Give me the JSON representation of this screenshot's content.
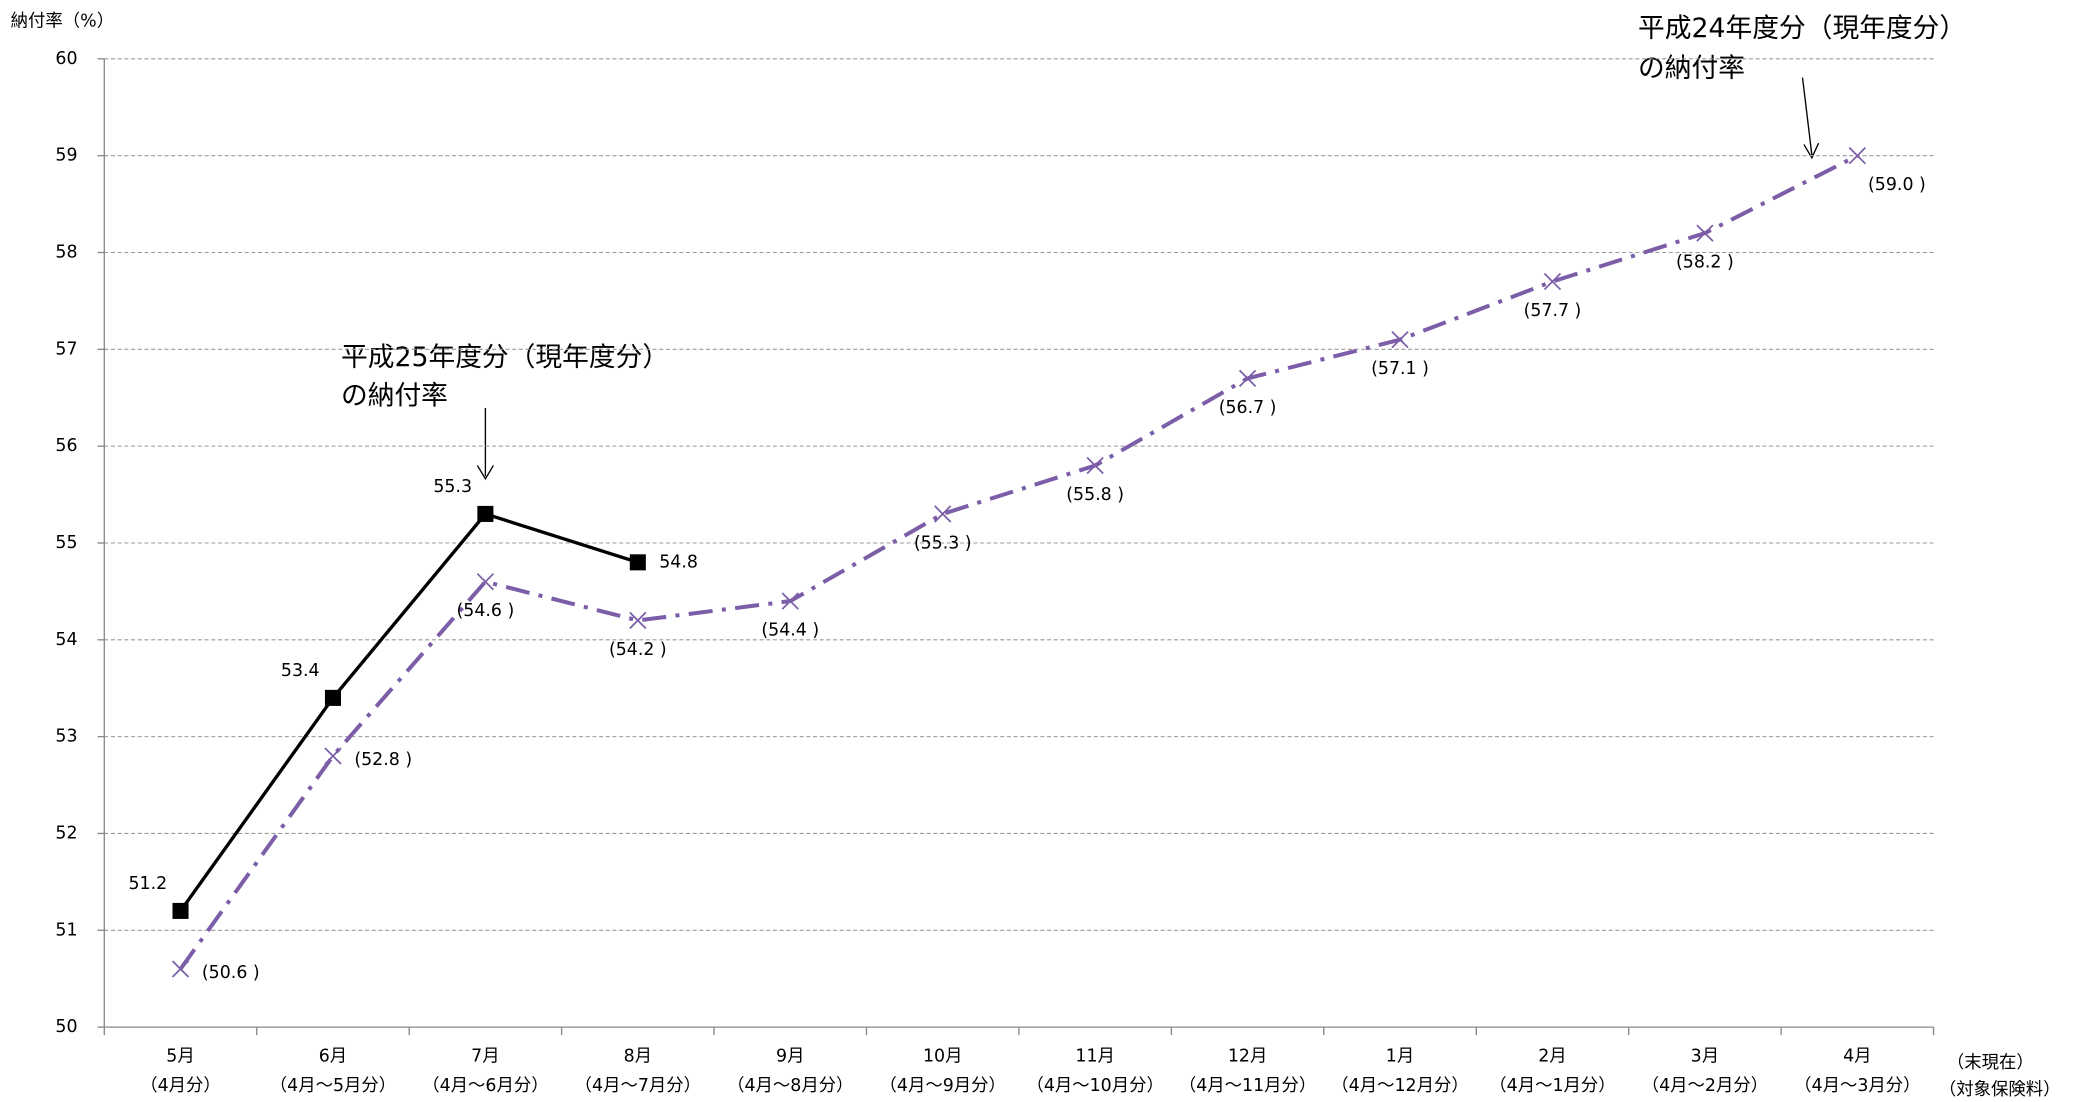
{
  "chart_data": {
    "type": "line",
    "ylabel": "納付率（%）",
    "xlabel": [
      "（末現在）",
      "（対象保険料）"
    ],
    "categories": [
      [
        "5月",
        "（4月分）"
      ],
      [
        "6月",
        "（4月～5月分）"
      ],
      [
        "7月",
        "（4月～6月分）"
      ],
      [
        "8月",
        "（4月～7月分）"
      ],
      [
        "9月",
        "（4月～8月分）"
      ],
      [
        "10月",
        "（4月～9月分）"
      ],
      [
        "11月",
        "（4月～10月分）"
      ],
      [
        "12月",
        "（4月～11月分）"
      ],
      [
        "1月",
        "（4月～12月分）"
      ],
      [
        "2月",
        "（4月～1月分）"
      ],
      [
        "3月",
        "（4月～2月分）"
      ],
      [
        "4月",
        "（4月～3月分）"
      ]
    ],
    "ylim": [
      50,
      60
    ],
    "yticks": [
      50,
      51,
      52,
      53,
      54,
      55,
      56,
      57,
      58,
      59,
      60
    ],
    "grid": true,
    "series": [
      {
        "name": [
          "平成25年度分（現年度分）",
          "の納付率"
        ],
        "color": "#000000",
        "marker": "square",
        "dash": "solid",
        "values": [
          51.2,
          53.4,
          55.3,
          54.8,
          null,
          null,
          null,
          null,
          null,
          null,
          null,
          null
        ]
      },
      {
        "name": [
          "平成24年度分（現年度分）",
          "の納付率"
        ],
        "color": "#7b5ea7",
        "marker": "x",
        "dash": "dashdot",
        "values": [
          50.6,
          52.8,
          54.6,
          54.2,
          54.4,
          55.3,
          55.8,
          56.7,
          57.1,
          57.7,
          58.2,
          59.0
        ],
        "value_labels": [
          "(50.6 )",
          "(52.8 )",
          "(54.6 )",
          "(54.2 )",
          "(54.4 )",
          "(55.3 )",
          "(55.8 )",
          "(56.7 )",
          "(57.1 )",
          "(57.7 )",
          "(58.2 )",
          "(59.0 )"
        ]
      }
    ]
  }
}
